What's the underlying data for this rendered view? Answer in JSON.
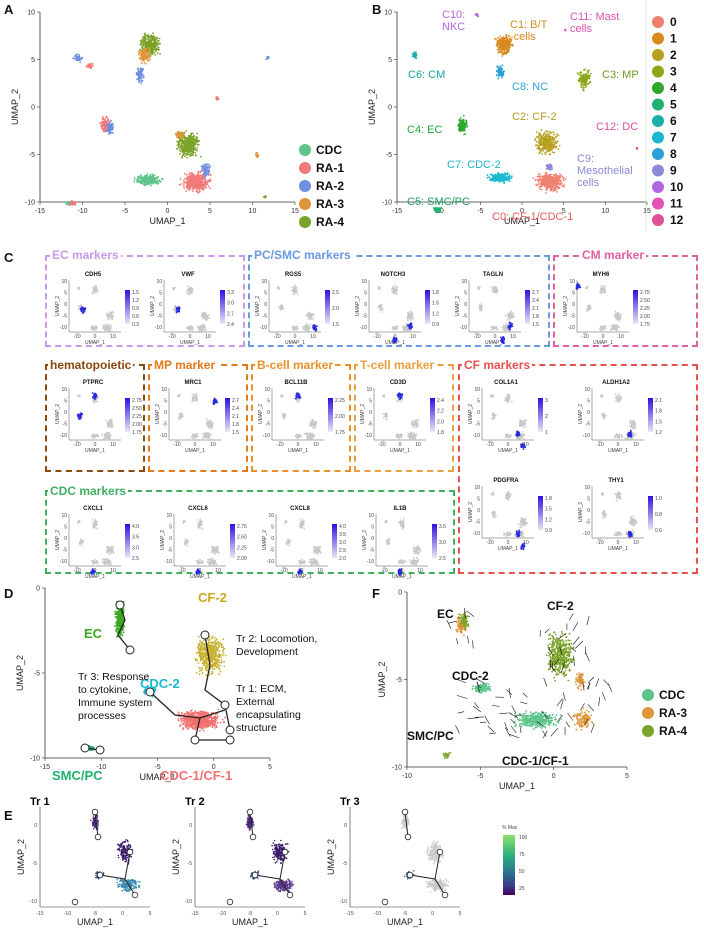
{
  "panels": {
    "A": {
      "label": "A",
      "xlabel": "UMAP_1",
      "ylabel": "UMAP_2",
      "xticks": [
        "-15",
        "-10",
        "-5",
        "0",
        "5",
        "10",
        "15"
      ],
      "yticks": [
        "10",
        "5",
        "0",
        "-5",
        "-10"
      ],
      "legend": [
        {
          "name": "CDC",
          "color": "#5cc48a"
        },
        {
          "name": "RA-1",
          "color": "#f27a7a"
        },
        {
          "name": "RA-2",
          "color": "#6f8fe0"
        },
        {
          "name": "RA-3",
          "color": "#e0953a"
        },
        {
          "name": "RA-4",
          "color": "#7aa32a"
        }
      ]
    },
    "B": {
      "label": "B",
      "xlabel": "UMAP_1",
      "ylabel": "UMAP_2",
      "xticks": [
        "-15",
        "-10",
        "-5",
        "0",
        "5",
        "10",
        "15"
      ],
      "yticks": [
        "10",
        "5",
        "0",
        "-5",
        "-10"
      ],
      "cluster_labels": [
        {
          "text": "C10:\nNKC",
          "color": "#b066e0"
        },
        {
          "text": "C1: B/T\n-cells",
          "color": "#d98a1f"
        },
        {
          "text": "C11: Mast\ncells",
          "color": "#e052b5"
        },
        {
          "text": "C6: CM",
          "color": "#14a6a0"
        },
        {
          "text": "C8: NC",
          "color": "#2ea0d9"
        },
        {
          "text": "C3: MP",
          "color": "#6f9a1f"
        },
        {
          "text": "C4: EC",
          "color": "#1fa83a"
        },
        {
          "text": "C2: CF-2",
          "color": "#b8a020"
        },
        {
          "text": "C12: DC",
          "color": "#e0509a"
        },
        {
          "text": "C7: CDC-2",
          "color": "#1fb8c8"
        },
        {
          "text": "C9:\nMesothelial\ncells",
          "color": "#8a8ad8"
        },
        {
          "text": "C5: SMC/PC",
          "color": "#20a060"
        },
        {
          "text": "C0: CF-1/CDC-1",
          "color": "#e85a5a"
        }
      ],
      "legend": [
        {
          "name": "0",
          "color": "#f08070"
        },
        {
          "name": "1",
          "color": "#d98a1f"
        },
        {
          "name": "2",
          "color": "#b8a020"
        },
        {
          "name": "3",
          "color": "#8aa81a"
        },
        {
          "name": "4",
          "color": "#2ea82a"
        },
        {
          "name": "5",
          "color": "#20b070"
        },
        {
          "name": "6",
          "color": "#1ab0a8"
        },
        {
          "name": "7",
          "color": "#1ab8d0"
        },
        {
          "name": "8",
          "color": "#2ea0d9"
        },
        {
          "name": "9",
          "color": "#8a8ad8"
        },
        {
          "name": "10",
          "color": "#b066e0"
        },
        {
          "name": "11",
          "color": "#e052b5"
        },
        {
          "name": "12",
          "color": "#e0509a"
        }
      ]
    },
    "C": {
      "label": "C",
      "groups": [
        {
          "title": "EC markers",
          "color": "#c89ae8",
          "genes": [
            "CDH5",
            "VWF"
          ]
        },
        {
          "title": "PC/SMC markers",
          "color": "#6a9ae0",
          "genes": [
            "RGS5",
            "NOTCH3",
            "TAGLN"
          ]
        },
        {
          "title": "CM marker",
          "color": "#e060a0",
          "genes": [
            "MYH6"
          ]
        },
        {
          "title": "hematopoietic",
          "color": "#8a4a10",
          "genes": [
            "PTPRC"
          ]
        },
        {
          "title": "MP marker",
          "color": "#e07a1a",
          "genes": [
            "MRC1"
          ]
        },
        {
          "title": "B-cell marker",
          "color": "#e8902a",
          "genes": [
            "BCL11B"
          ]
        },
        {
          "title": "T-cell marker",
          "color": "#e8a040",
          "genes": [
            "CD3D"
          ]
        },
        {
          "title": "CF markers",
          "color": "#e85050",
          "genes": [
            "COL1A1",
            "ALDH1A2",
            "PDGFRA",
            "THY1"
          ]
        },
        {
          "title": "CDC markers",
          "color": "#40b060",
          "genes": [
            "CXCL1",
            "CXCL6",
            "CXCL8",
            "IL1B"
          ]
        }
      ],
      "scales": {
        "CDH5": [
          "1.5",
          "1.2",
          "0.9",
          "0.6",
          "0.3"
        ],
        "VWF": [
          "3.3",
          "3.0",
          "2.7",
          "2.4"
        ],
        "RGS5": [
          "2.5",
          "2.0",
          "1.5"
        ],
        "NOTCH3": [
          "1.8",
          "1.5",
          "1.2",
          "0.9"
        ],
        "TAGLN": [
          "2.7",
          "2.4",
          "2.1",
          "1.8",
          "1.5"
        ],
        "MYH6": [
          "2.75",
          "2.50",
          "2.25",
          "2.00",
          "1.75"
        ],
        "PTPRC": [
          "2.75",
          "2.50",
          "2.25",
          "2.00",
          "1.75"
        ],
        "MRC1": [
          "2.7",
          "2.4",
          "2.1",
          "1.8",
          "1.5"
        ],
        "BCL11B": [
          "2.25",
          "2.00",
          "1.75"
        ],
        "CD3D": [
          "2.4",
          "2.2",
          "2.0",
          "1.8"
        ],
        "COL1A1": [
          "3",
          "2",
          "1"
        ],
        "ALDH1A2": [
          "2.1",
          "1.8",
          "1.5",
          "1.2"
        ],
        "PDGFRA": [
          "1.8",
          "1.5",
          "1.2",
          "0.9"
        ],
        "THY1": [
          "1.0",
          "0.8",
          "0.6"
        ],
        "CXCL1": [
          "4.0",
          "3.5",
          "3.0",
          "2.5"
        ],
        "CXCL6": [
          "2.75",
          "2.50",
          "2.25",
          "2.00"
        ],
        "CXCL8": [
          "4.0",
          "3.5",
          "3.0",
          "2.5",
          "2.0"
        ],
        "IL1B": [
          "3.5",
          "3.0",
          "2.5"
        ]
      },
      "mini_xlabel": "UMAP_1",
      "mini_ylabel": "UMAP_2",
      "mini_xticks": [
        "-10",
        "0",
        "10"
      ],
      "mini_yticks": [
        "10",
        "5",
        "0",
        "-5",
        "-10"
      ]
    },
    "D": {
      "label": "D",
      "xlabel": "UMAP_1",
      "ylabel": "UMAP_2",
      "xticks": [
        "-15",
        "-10",
        "-5",
        "0",
        "5"
      ],
      "yticks": [
        "0",
        "-5",
        "-10"
      ],
      "labels": [
        {
          "text": "EC",
          "color": "#3aa820"
        },
        {
          "text": "CF-2",
          "color": "#c8a820"
        },
        {
          "text": "CDC-2",
          "color": "#1ab8d0"
        },
        {
          "text": "SMC/PC",
          "color": "#20b070"
        },
        {
          "text": "CDC-1/CF-1",
          "color": "#f07070"
        }
      ],
      "annotations": [
        "Tr 2: Locomotion,\nDevelopment",
        "Tr 3: Response\nto cytokine,\nImmune system\nprocesses",
        "Tr 1: ECM,\nExternal\nencapsulating\nstructure"
      ]
    },
    "E": {
      "label": "E",
      "titles": [
        "Tr 1",
        "Tr 2",
        "Tr 3"
      ],
      "xlabel": "UMAP_1",
      "ylabel": "UMAP_2",
      "xticks": [
        "-15",
        "-10",
        "-5",
        "0",
        "5"
      ],
      "yticks": [
        "0",
        "-5",
        "-10"
      ],
      "colorbar_title": "% Max",
      "colorbar_ticks": [
        "100",
        "75",
        "50",
        "25"
      ]
    },
    "F": {
      "label": "F",
      "xlabel": "UMAP_1",
      "ylabel": "UMAP_2",
      "xticks": [
        "-10",
        "-5",
        "0",
        "5"
      ],
      "yticks": [
        "0",
        "-5",
        "-10"
      ],
      "labels": [
        "EC",
        "CF-2",
        "CDC-2",
        "SMC/PC",
        "CDC-1/CF-1"
      ],
      "legend": [
        {
          "name": "CDC",
          "color": "#5cc48a"
        },
        {
          "name": "RA-3",
          "color": "#e0953a"
        },
        {
          "name": "RA-4",
          "color": "#7aa32a"
        }
      ]
    }
  }
}
